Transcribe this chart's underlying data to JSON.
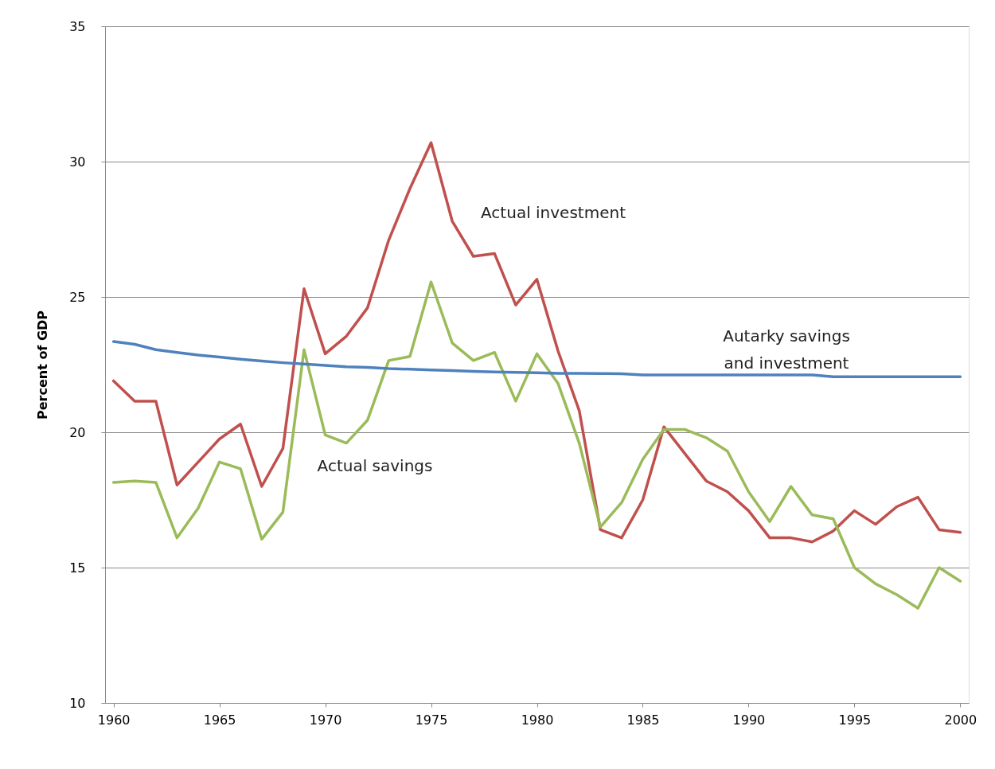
{
  "chart_data": {
    "type": "line",
    "ylabel": "Percent of GDP",
    "x": [
      1960,
      1961,
      1962,
      1963,
      1964,
      1965,
      1966,
      1967,
      1968,
      1969,
      1970,
      1971,
      1972,
      1973,
      1974,
      1975,
      1976,
      1977,
      1978,
      1979,
      1980,
      1981,
      1982,
      1983,
      1984,
      1985,
      1986,
      1987,
      1988,
      1989,
      1990,
      1991,
      1992,
      1993,
      1994,
      1995,
      1996,
      1997,
      1998,
      1999,
      2000
    ],
    "series": [
      {
        "name": "Actual investment",
        "color": "#c0504d",
        "values": [
          21.9,
          21.15,
          21.15,
          18.05,
          18.9,
          19.75,
          20.3,
          18.0,
          19.4,
          25.3,
          22.9,
          23.55,
          24.6,
          27.1,
          29.0,
          30.7,
          27.8,
          26.5,
          26.6,
          24.7,
          25.65,
          23.0,
          20.8,
          16.4,
          16.1,
          17.5,
          20.2,
          19.2,
          18.2,
          17.8,
          17.1,
          16.1,
          16.1,
          15.95,
          16.35,
          17.1,
          16.6,
          17.25,
          17.6,
          16.4,
          16.3
        ]
      },
      {
        "name": "Actual savings",
        "color": "#9bbb59",
        "values": [
          18.15,
          18.2,
          18.15,
          16.1,
          17.2,
          18.9,
          18.65,
          16.05,
          17.05,
          23.05,
          19.9,
          19.6,
          20.45,
          22.65,
          22.8,
          25.55,
          23.3,
          22.65,
          22.95,
          21.15,
          22.9,
          21.8,
          19.6,
          16.5,
          17.4,
          19.0,
          20.1,
          20.1,
          19.8,
          19.3,
          17.8,
          16.7,
          18.0,
          16.95,
          16.8,
          15.0,
          14.4,
          14.0,
          13.5,
          15.0,
          14.5
        ]
      },
      {
        "name": "Autarky savings\nand investment",
        "color": "#4f81bd",
        "values": [
          23.35,
          23.25,
          23.05,
          22.95,
          22.85,
          22.78,
          22.7,
          22.63,
          22.57,
          22.52,
          22.47,
          22.42,
          22.4,
          22.35,
          22.33,
          22.3,
          22.28,
          22.25,
          22.23,
          22.21,
          22.2,
          22.18,
          22.18,
          22.17,
          22.16,
          22.12,
          22.12,
          22.12,
          22.12,
          22.12,
          22.12,
          22.12,
          22.12,
          22.12,
          22.05,
          22.05,
          22.05,
          22.05,
          22.05,
          22.05,
          22.05
        ]
      }
    ],
    "xlim": [
      1959.6,
      2000.4
    ],
    "xticks": [
      1960,
      1965,
      1970,
      1975,
      1980,
      1985,
      1990,
      1995,
      2000
    ],
    "ylim": [
      10,
      35
    ],
    "yticks": [
      10,
      15,
      20,
      25,
      30,
      35
    ],
    "grid": "y",
    "legend": false,
    "line_style": "solid",
    "marker": "none"
  }
}
